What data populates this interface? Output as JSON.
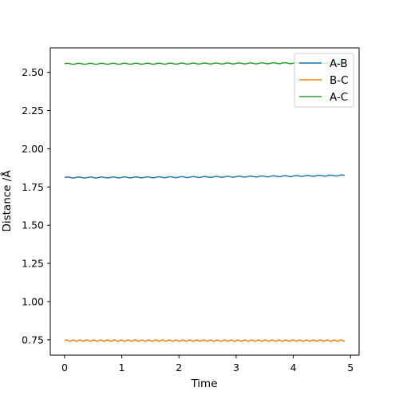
{
  "chart_data": {
    "type": "line",
    "xlabel": "Time",
    "ylabel": "Distance /Å",
    "xlim": [
      -0.25,
      5.15
    ],
    "ylim": [
      0.65,
      2.66
    ],
    "xticks": [
      0,
      1,
      2,
      3,
      4,
      5
    ],
    "xtick_labels": [
      "0",
      "1",
      "2",
      "3",
      "4",
      "5"
    ],
    "yticks": [
      0.75,
      1.0,
      1.25,
      1.5,
      1.75,
      2.0,
      2.25,
      2.5
    ],
    "ytick_labels": [
      "0.75",
      "1.00",
      "1.25",
      "1.50",
      "1.75",
      "2.00",
      "2.25",
      "2.50"
    ],
    "grid": false,
    "legend_position": "top-right",
    "series": [
      {
        "name": "A-B",
        "color": "#1f77b4",
        "x_start": 0,
        "x_end": 4.9,
        "base_start": 1.812,
        "base_end": 1.826,
        "amplitude": 0.003,
        "period": 0.2
      },
      {
        "name": "B-C",
        "color": "#ff7f0e",
        "x_start": 0,
        "x_end": 4.9,
        "base_start": 0.745,
        "base_end": 0.745,
        "amplitude": 0.004,
        "period": 0.12
      },
      {
        "name": "A-C",
        "color": "#2ca02c",
        "x_start": 0,
        "x_end": 4.9,
        "base_start": 2.556,
        "base_end": 2.562,
        "amplitude": 0.003,
        "period": 0.2
      }
    ]
  }
}
